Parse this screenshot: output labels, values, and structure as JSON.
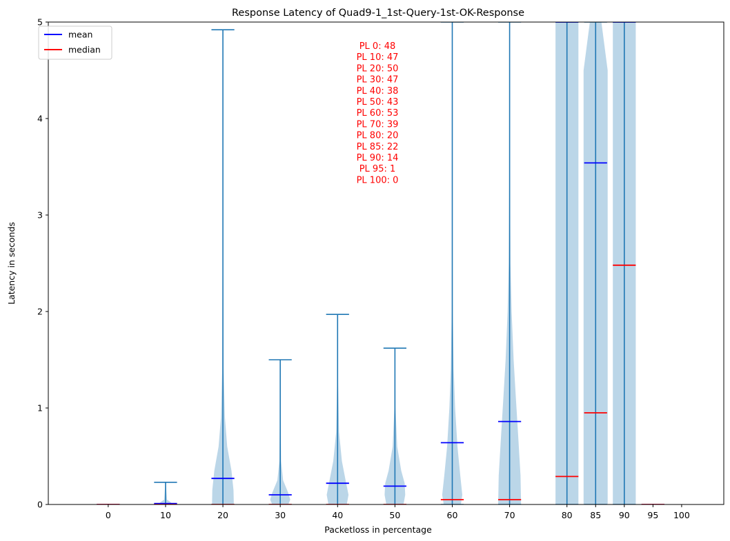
{
  "chart_data": {
    "type": "violin",
    "title": "Response Latency of Quad9-1_1st-Query-1st-OK-Response",
    "xlabel": "Packetloss in percentage",
    "ylabel": "Latency in seconds",
    "ylim": [
      0,
      5
    ],
    "yticks": [
      0,
      1,
      2,
      3,
      4,
      5
    ],
    "grid": false,
    "legend": {
      "placement": "top-left",
      "entries": [
        {
          "label": "mean",
          "color": "#0000ff"
        },
        {
          "label": "median",
          "color": "#ff0000"
        }
      ]
    },
    "colors": {
      "violin_fill": "#1f77b4",
      "violin_fill_opacity": 0.3,
      "extrema": "#1f77b4",
      "mean": "#0000ff",
      "median": "#ff0000",
      "annotation": "#ff0000"
    },
    "categories": [
      "0",
      "10",
      "20",
      "30",
      "40",
      "50",
      "60",
      "70",
      "80",
      "85",
      "90",
      "95",
      "100"
    ],
    "x": [
      0,
      10,
      20,
      30,
      40,
      50,
      60,
      70,
      80,
      85,
      90,
      95,
      100
    ],
    "violins": [
      {
        "x": 0,
        "min": 0,
        "max": 0,
        "mean": 0.0,
        "median": 0.0,
        "density": []
      },
      {
        "x": 10,
        "min": 0,
        "max": 0.23,
        "mean": 0.01,
        "median": 0.0,
        "density": [
          [
            0,
            0.12
          ],
          [
            0.02,
            0.2
          ],
          [
            0.05,
            0.05
          ],
          [
            0.23,
            0.005
          ]
        ]
      },
      {
        "x": 20,
        "min": 0,
        "max": 4.92,
        "mean": 0.27,
        "median": 0.0,
        "density": [
          [
            0,
            0.38
          ],
          [
            0.15,
            0.37
          ],
          [
            0.35,
            0.3
          ],
          [
            0.6,
            0.15
          ],
          [
            0.9,
            0.07
          ],
          [
            1.4,
            0.025
          ],
          [
            2.5,
            0.01
          ],
          [
            4.92,
            0.005
          ]
        ]
      },
      {
        "x": 30,
        "min": 0,
        "max": 1.5,
        "mean": 0.1,
        "median": 0.0,
        "density": [
          [
            0,
            0.28
          ],
          [
            0.05,
            0.35
          ],
          [
            0.12,
            0.28
          ],
          [
            0.25,
            0.1
          ],
          [
            0.45,
            0.03
          ],
          [
            1.0,
            0.01
          ],
          [
            1.5,
            0.005
          ]
        ]
      },
      {
        "x": 40,
        "min": 0,
        "max": 1.97,
        "mean": 0.22,
        "median": 0.0,
        "density": [
          [
            0,
            0.32
          ],
          [
            0.1,
            0.38
          ],
          [
            0.25,
            0.28
          ],
          [
            0.45,
            0.15
          ],
          [
            0.75,
            0.05
          ],
          [
            1.3,
            0.015
          ],
          [
            1.97,
            0.005
          ]
        ]
      },
      {
        "x": 50,
        "min": 0,
        "max": 1.62,
        "mean": 0.19,
        "median": 0.0,
        "density": [
          [
            0,
            0.3
          ],
          [
            0.1,
            0.36
          ],
          [
            0.22,
            0.34
          ],
          [
            0.35,
            0.22
          ],
          [
            0.6,
            0.08
          ],
          [
            1.0,
            0.02
          ],
          [
            1.62,
            0.005
          ]
        ]
      },
      {
        "x": 60,
        "min": 0,
        "max": 5,
        "mean": 0.64,
        "median": 0.05,
        "density": [
          [
            0,
            0.3
          ],
          [
            0.1,
            0.35
          ],
          [
            0.3,
            0.28
          ],
          [
            0.6,
            0.18
          ],
          [
            1.0,
            0.1
          ],
          [
            1.4,
            0.05
          ],
          [
            2.0,
            0.02
          ],
          [
            3.0,
            0.01
          ],
          [
            5,
            0.005
          ]
        ]
      },
      {
        "x": 70,
        "min": 0,
        "max": 5,
        "mean": 0.86,
        "median": 0.05,
        "density": [
          [
            0,
            0.4
          ],
          [
            0.3,
            0.38
          ],
          [
            0.7,
            0.3
          ],
          [
            1.1,
            0.22
          ],
          [
            1.5,
            0.14
          ],
          [
            2.0,
            0.07
          ],
          [
            2.5,
            0.03
          ],
          [
            3.5,
            0.01
          ],
          [
            5,
            0.005
          ]
        ]
      },
      {
        "x": 80,
        "min": 0,
        "max": 5,
        "mean": 5,
        "median": 0.29,
        "density": [
          [
            0,
            0.4
          ],
          [
            5,
            0.4
          ]
        ]
      },
      {
        "x": 85,
        "min": 0,
        "max": 5,
        "mean": 3.54,
        "median": 0.95,
        "density": [
          [
            0,
            0.42
          ],
          [
            4.5,
            0.42
          ],
          [
            5,
            0.2
          ]
        ]
      },
      {
        "x": 90,
        "min": 0,
        "max": 5,
        "mean": 5,
        "median": 2.48,
        "density": [
          [
            0,
            0.4
          ],
          [
            5,
            0.4
          ]
        ]
      },
      {
        "x": 95,
        "min": 0,
        "max": 0,
        "mean": 0.0,
        "median": 0.0,
        "density": []
      }
    ],
    "annotations": [
      "PL 0: 48",
      "PL 10: 47",
      "PL 20: 50",
      "PL 30: 47",
      "PL 40: 38",
      "PL 50: 43",
      "PL 60: 53",
      "PL 70: 39",
      "PL 80: 20",
      "PL 85: 22",
      "PL 90: 14",
      "PL 95: 1",
      "PL 100: 0"
    ]
  }
}
